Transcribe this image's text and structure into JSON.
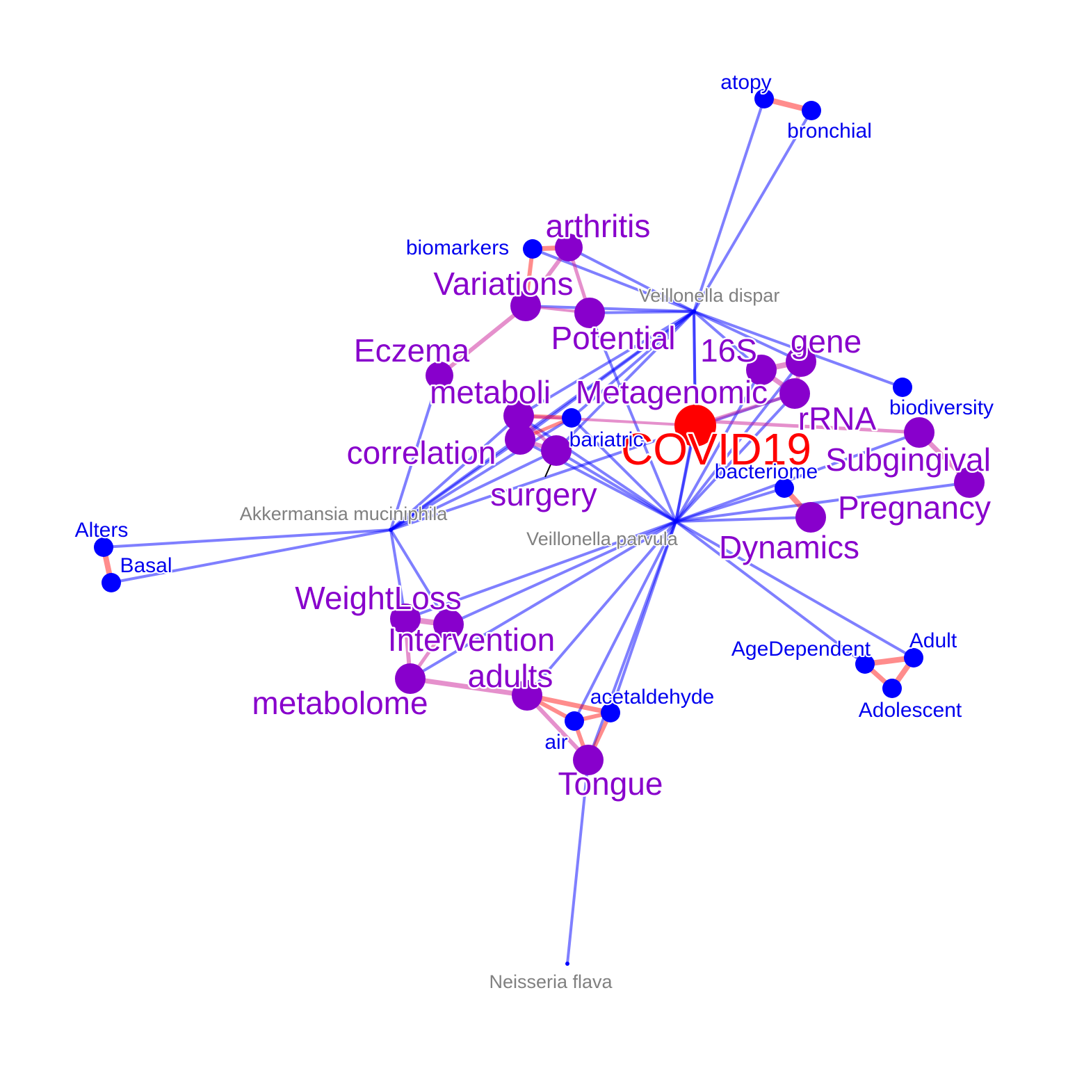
{
  "title": "",
  "colors": {
    "species_label": "#808080",
    "term_blue": "#0000ee",
    "term_purple": "#8800cc",
    "focus": "#ff0000",
    "species_edge": "#0000ff",
    "cooccurrence_edge": "#ff0000"
  },
  "species": [
    {
      "id": "vdis",
      "label": "Veillonella dispar"
    },
    {
      "id": "vpar",
      "label": "Veillonella parvula"
    },
    {
      "id": "akk",
      "label": "Akkermansia muciniphila"
    },
    {
      "id": "nfl",
      "label": "Neisseria flava"
    }
  ],
  "terms": [
    {
      "id": "atopy",
      "label": "atopy",
      "group": "blue"
    },
    {
      "id": "bronchial",
      "label": "bronchial",
      "group": "blue"
    },
    {
      "id": "biomarkers",
      "label": "biomarkers",
      "group": "blue"
    },
    {
      "id": "arthritis",
      "label": "arthritis",
      "group": "purple"
    },
    {
      "id": "variations",
      "label": "Variations",
      "group": "purple"
    },
    {
      "id": "potential",
      "label": "Potential",
      "group": "purple"
    },
    {
      "id": "eczema",
      "label": "Eczema",
      "group": "purple"
    },
    {
      "id": "s16",
      "label": "16S",
      "group": "purple"
    },
    {
      "id": "gene",
      "label": "gene",
      "group": "purple"
    },
    {
      "id": "metaboli",
      "label": "metaboli",
      "group": "purple"
    },
    {
      "id": "metagenomic",
      "label": "Metagenomic",
      "group": "purple"
    },
    {
      "id": "rrna",
      "label": "rRNA",
      "group": "purple"
    },
    {
      "id": "biodiversity",
      "label": "biodiversity",
      "group": "blue"
    },
    {
      "id": "covid",
      "label": "COVID19",
      "group": "focus"
    },
    {
      "id": "bariatric",
      "label": "bariatric",
      "group": "blue"
    },
    {
      "id": "correlation",
      "label": "correlation",
      "group": "purple"
    },
    {
      "id": "subgingival",
      "label": "Subgingival",
      "group": "purple"
    },
    {
      "id": "bacteriome",
      "label": "bacteriome",
      "group": "blue"
    },
    {
      "id": "surgery",
      "label": "surgery",
      "group": "purple"
    },
    {
      "id": "pregnancy",
      "label": "Pregnancy",
      "group": "purple"
    },
    {
      "id": "dynamics",
      "label": "Dynamics",
      "group": "purple"
    },
    {
      "id": "alters",
      "label": "Alters",
      "group": "blue"
    },
    {
      "id": "basal",
      "label": "Basal",
      "group": "blue"
    },
    {
      "id": "weightloss",
      "label": "WeightLoss",
      "group": "purple"
    },
    {
      "id": "intervention",
      "label": "Intervention",
      "group": "purple"
    },
    {
      "id": "agedependent",
      "label": "AgeDependent",
      "group": "blue"
    },
    {
      "id": "adult",
      "label": "Adult",
      "group": "blue"
    },
    {
      "id": "adults",
      "label": "adults",
      "group": "purple"
    },
    {
      "id": "adolescent",
      "label": "Adolescent",
      "group": "blue"
    },
    {
      "id": "metabolome",
      "label": "metabolome",
      "group": "purple"
    },
    {
      "id": "acetaldehyde",
      "label": "acetaldehyde",
      "group": "blue"
    },
    {
      "id": "air",
      "label": "air",
      "group": "blue"
    },
    {
      "id": "tongue",
      "label": "Tongue",
      "group": "purple"
    }
  ]
}
